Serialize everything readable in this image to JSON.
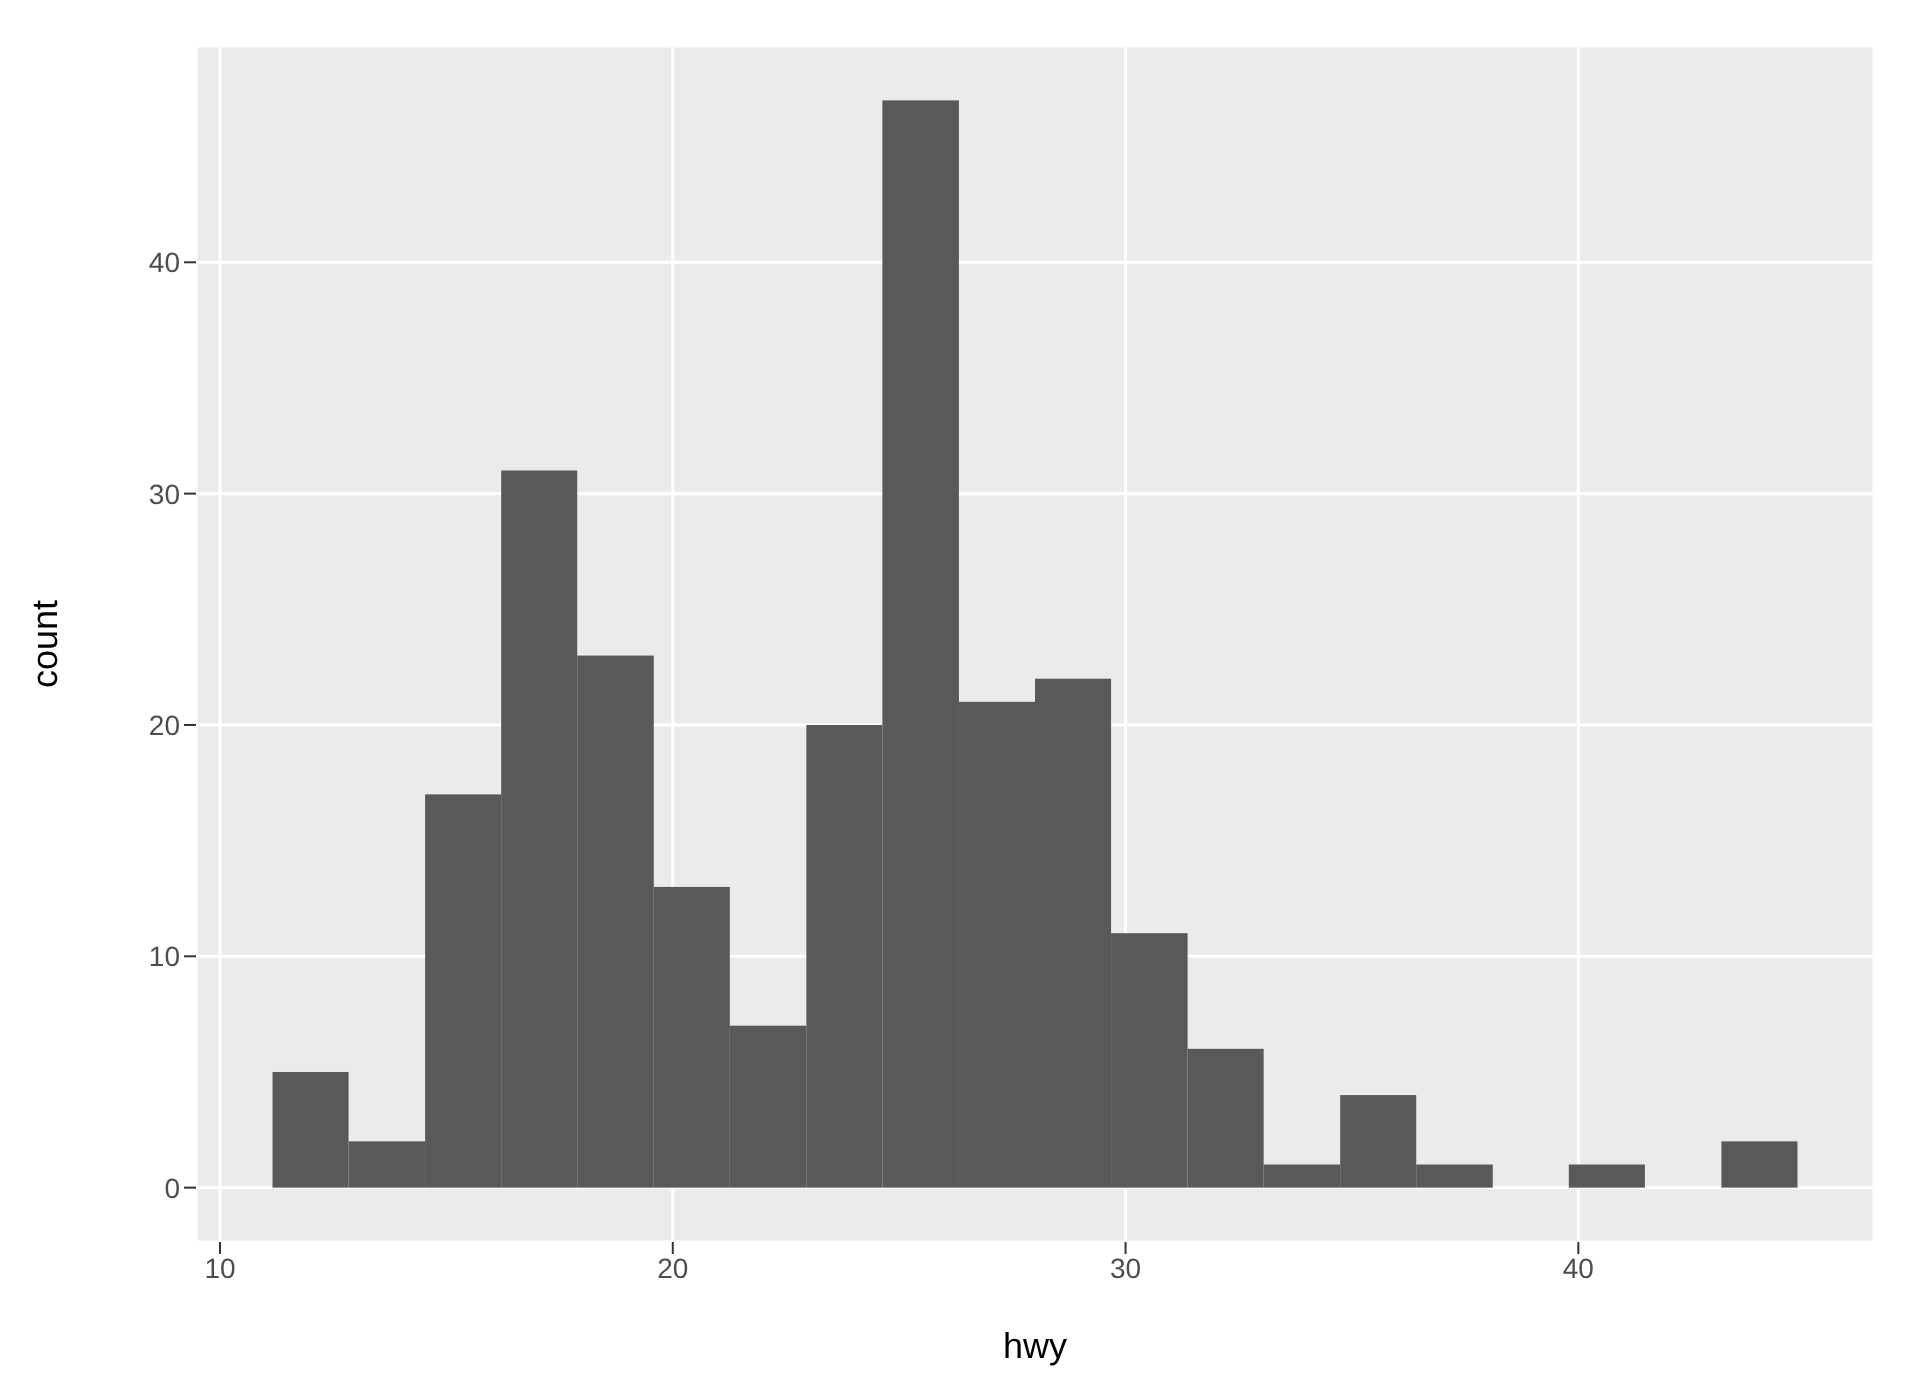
{
  "chart_data": {
    "type": "histogram",
    "xlabel": "hwy",
    "ylabel": "count",
    "bins": [
      11.16,
      12.84,
      14.53,
      16.21,
      17.89,
      19.58,
      21.26,
      22.95,
      24.63,
      26.32,
      28,
      29.68,
      31.37,
      33.05,
      34.74,
      36.42,
      38.11,
      39.79,
      41.47,
      43.16,
      44.84
    ],
    "values": [
      5,
      2,
      17,
      31,
      23,
      13,
      7,
      20,
      47,
      21,
      22,
      11,
      6,
      1,
      4,
      1,
      0,
      1,
      0,
      2
    ],
    "color": "#595959",
    "xlim": [
      9.47,
      46.53
    ],
    "xticks": [
      10,
      20,
      30,
      40
    ],
    "ylim": [
      -2.35,
      49.35
    ],
    "yticks": [
      0,
      10,
      20,
      30,
      40
    ],
    "grid": true
  }
}
